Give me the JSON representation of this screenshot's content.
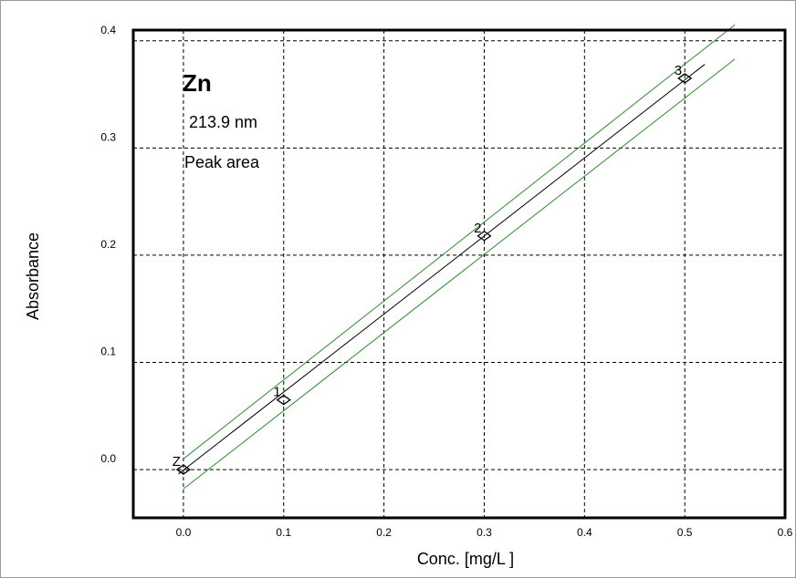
{
  "chart_data": {
    "type": "scatter",
    "xlabel": "Conc. [mg/L ]",
    "ylabel": "Absorbance",
    "xlim": [
      -0.05,
      0.6
    ],
    "ylim": [
      -0.045,
      0.41
    ],
    "x_ticks": [
      0.0,
      0.1,
      0.2,
      0.3,
      0.4,
      0.5,
      0.6
    ],
    "x_tick_labels": [
      "0.0",
      "0.1",
      "0.2",
      "0.3",
      "0.4",
      "0.5",
      "0.6"
    ],
    "y_ticks": [
      0.0,
      0.1,
      0.2,
      0.3,
      0.4
    ],
    "y_tick_labels": [
      "0.0",
      "0.1",
      "0.2",
      "0.3",
      "0.4"
    ],
    "grid": true,
    "annotations": {
      "element": "Zn",
      "wavelength": "213.9 nm",
      "mode": "Peak area"
    },
    "points": [
      {
        "label": "Z",
        "x": 0.0,
        "y": 0.0
      },
      {
        "label": "1",
        "x": 0.1,
        "y": 0.065
      },
      {
        "label": "2",
        "x": 0.3,
        "y": 0.218
      },
      {
        "label": "3",
        "x": 0.5,
        "y": 0.365
      }
    ],
    "fit_line": {
      "x_start": -0.005,
      "x_end": 0.52,
      "slope": 0.728,
      "intercept": -0.0005
    },
    "confidence_upper": {
      "x_start": 0.0,
      "x_end": 0.55,
      "y_start": 0.01,
      "y_end": 0.415
    },
    "confidence_lower": {
      "x_start": 0.0,
      "x_end": 0.55,
      "y_start": -0.018,
      "y_end": 0.383
    },
    "colors": {
      "fit": "#000000",
      "band": "#2e8b2e",
      "grid": "#000000",
      "frame": "#000000"
    }
  }
}
